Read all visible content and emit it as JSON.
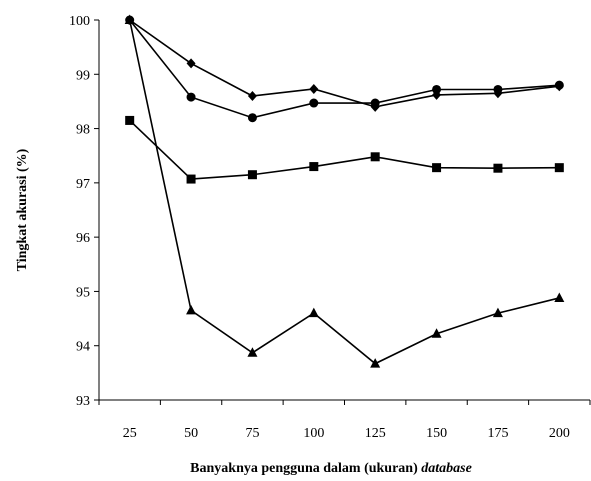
{
  "chart_data": {
    "type": "line",
    "title": "",
    "xlabel_main": "Banyaknya pengguna dalam (ukuran) ",
    "xlabel_italic": "database",
    "ylabel": "Tingkat akurasi (%)",
    "ylim": [
      93,
      100
    ],
    "yticks": [
      "93",
      "94",
      "95",
      "96",
      "97",
      "98",
      "99",
      "100"
    ],
    "categories": [
      "25",
      "50",
      "75",
      "100",
      "125",
      "150",
      "175",
      "200"
    ],
    "grid": false,
    "legend": "none",
    "series": [
      {
        "marker": "diamond",
        "color": "#000000",
        "values": [
          100.0,
          99.2,
          98.6,
          98.73,
          98.4,
          98.62,
          98.65,
          98.78
        ]
      },
      {
        "marker": "circle",
        "color": "#000000",
        "values": [
          100.0,
          98.58,
          98.2,
          98.47,
          98.47,
          98.72,
          98.72,
          98.8
        ]
      },
      {
        "marker": "square",
        "color": "#000000",
        "values": [
          98.15,
          97.07,
          97.15,
          97.3,
          97.48,
          97.28,
          97.27,
          97.28
        ]
      },
      {
        "marker": "triangle",
        "color": "#000000",
        "values": [
          100.0,
          94.65,
          93.87,
          94.6,
          93.67,
          94.22,
          94.6,
          94.88
        ]
      }
    ]
  }
}
